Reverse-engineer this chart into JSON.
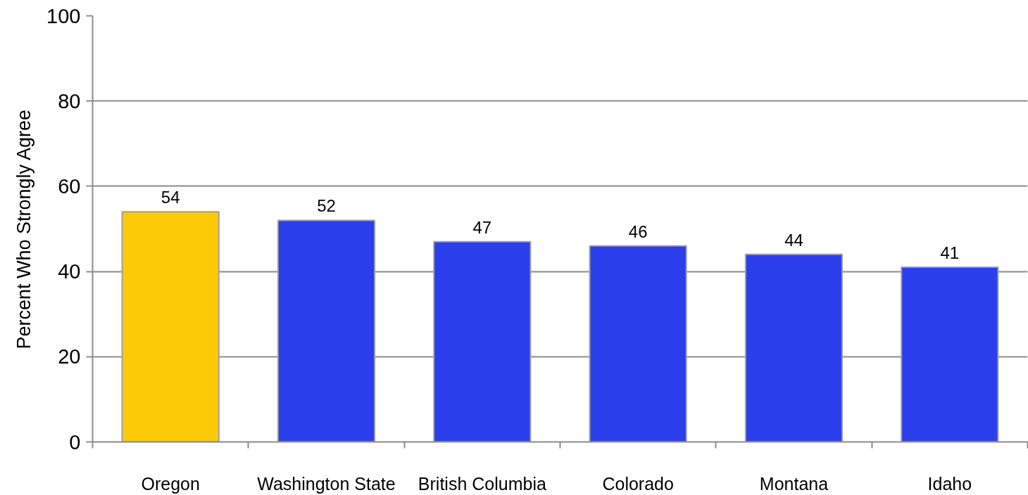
{
  "chart_data": {
    "type": "bar",
    "ylabel": "Percent Who Strongly Agree",
    "categories": [
      "Oregon",
      "Washington State",
      "British Columbia",
      "Colorado",
      "Montana",
      "Idaho"
    ],
    "values": [
      54,
      52,
      47,
      46,
      44,
      41
    ],
    "colors": [
      "#fdca08",
      "#2b3eec",
      "#2b3eec",
      "#2b3eec",
      "#2b3eec",
      "#2b3eec"
    ],
    "ylim": [
      0,
      100
    ],
    "yticks": [
      0,
      20,
      40,
      60,
      80,
      100
    ],
    "grid": "y",
    "data_labels": true
  }
}
